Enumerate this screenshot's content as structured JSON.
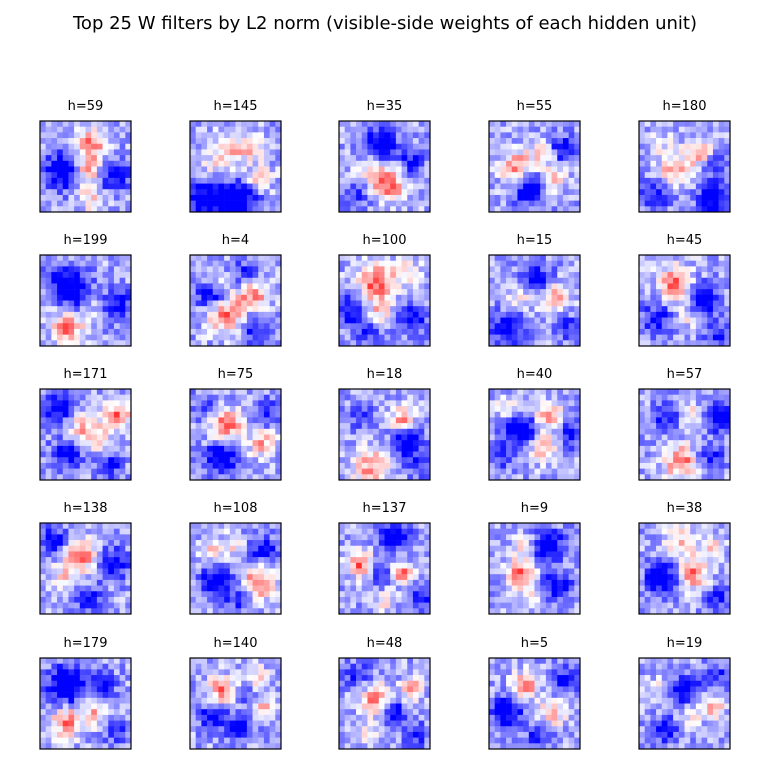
{
  "chart_data": {
    "type": "heatmap",
    "title": "Top 25 W filters by L2 norm (visible-side weights of each hidden unit)",
    "grid": "5x5 panels, each a 16x16 weight image",
    "colormap": "bwr",
    "colors": {
      "negative": "#0000ff",
      "zero": "#ffffff",
      "positive": "#ff0000",
      "frame": "#000000"
    },
    "panels": [
      {
        "label": "h=59",
        "blobs": [
          [
            0.55,
            0.25,
            0.12,
            0.9
          ],
          [
            0.52,
            0.55,
            0.12,
            0.8
          ],
          [
            0.55,
            0.85,
            0.1,
            0.5
          ],
          [
            0.25,
            0.55,
            0.15,
            -0.9
          ],
          [
            0.8,
            0.6,
            0.12,
            -0.8
          ]
        ]
      },
      {
        "label": "h=145",
        "blobs": [
          [
            0.45,
            0.3,
            0.12,
            0.6
          ],
          [
            0.7,
            0.3,
            0.1,
            0.5
          ],
          [
            0.75,
            0.65,
            0.1,
            0.7
          ],
          [
            0.3,
            0.5,
            0.12,
            0.4
          ],
          [
            0.2,
            0.85,
            0.15,
            -0.9
          ],
          [
            0.55,
            0.85,
            0.15,
            -0.9
          ]
        ]
      },
      {
        "label": "h=35",
        "blobs": [
          [
            0.55,
            0.7,
            0.12,
            1.0
          ],
          [
            0.35,
            0.55,
            0.1,
            0.6
          ],
          [
            0.45,
            0.25,
            0.12,
            -0.9
          ],
          [
            0.8,
            0.45,
            0.1,
            -0.6
          ],
          [
            0.2,
            0.8,
            0.1,
            -0.5
          ]
        ]
      },
      {
        "label": "h=55",
        "blobs": [
          [
            0.3,
            0.5,
            0.12,
            0.8
          ],
          [
            0.6,
            0.35,
            0.1,
            0.6
          ],
          [
            0.7,
            0.65,
            0.1,
            0.6
          ],
          [
            0.45,
            0.75,
            0.12,
            -0.9
          ],
          [
            0.8,
            0.3,
            0.1,
            -0.8
          ]
        ]
      },
      {
        "label": "h=180",
        "blobs": [
          [
            0.4,
            0.55,
            0.12,
            0.8
          ],
          [
            0.65,
            0.35,
            0.1,
            0.7
          ],
          [
            0.25,
            0.25,
            0.1,
            0.3
          ],
          [
            0.8,
            0.85,
            0.1,
            -1.0
          ],
          [
            0.2,
            0.8,
            0.12,
            -0.6
          ],
          [
            0.85,
            0.5,
            0.1,
            -0.5
          ]
        ]
      },
      {
        "label": "h=199",
        "blobs": [
          [
            0.3,
            0.8,
            0.12,
            0.9
          ],
          [
            0.55,
            0.5,
            0.12,
            0.4
          ],
          [
            0.4,
            0.4,
            0.14,
            -1.0
          ],
          [
            0.85,
            0.55,
            0.12,
            -0.7
          ],
          [
            0.2,
            0.25,
            0.12,
            -0.5
          ]
        ]
      },
      {
        "label": "h=4",
        "blobs": [
          [
            0.4,
            0.65,
            0.14,
            1.0
          ],
          [
            0.7,
            0.45,
            0.12,
            0.8
          ],
          [
            0.3,
            0.3,
            0.1,
            0.3
          ],
          [
            0.25,
            0.45,
            0.12,
            -0.8
          ],
          [
            0.7,
            0.8,
            0.12,
            -0.6
          ],
          [
            0.6,
            0.2,
            0.1,
            -0.5
          ]
        ]
      },
      {
        "label": "h=100",
        "blobs": [
          [
            0.4,
            0.3,
            0.14,
            1.0
          ],
          [
            0.45,
            0.6,
            0.1,
            0.6
          ],
          [
            0.75,
            0.2,
            0.1,
            0.5
          ],
          [
            0.15,
            0.6,
            0.12,
            -0.8
          ],
          [
            0.8,
            0.7,
            0.12,
            -0.7
          ],
          [
            0.3,
            0.85,
            0.1,
            -0.5
          ]
        ]
      },
      {
        "label": "h=15",
        "blobs": [
          [
            0.7,
            0.45,
            0.12,
            0.9
          ],
          [
            0.35,
            0.45,
            0.1,
            0.4
          ],
          [
            0.55,
            0.3,
            0.12,
            -0.9
          ],
          [
            0.2,
            0.8,
            0.12,
            -0.8
          ],
          [
            0.85,
            0.8,
            0.1,
            -0.5
          ]
        ]
      },
      {
        "label": "h=45",
        "blobs": [
          [
            0.4,
            0.3,
            0.12,
            1.0
          ],
          [
            0.55,
            0.65,
            0.1,
            0.5
          ],
          [
            0.7,
            0.5,
            0.12,
            -1.0
          ],
          [
            0.2,
            0.7,
            0.12,
            -0.6
          ],
          [
            0.85,
            0.85,
            0.1,
            -0.5
          ]
        ]
      },
      {
        "label": "h=171",
        "blobs": [
          [
            0.85,
            0.3,
            0.1,
            0.9
          ],
          [
            0.45,
            0.45,
            0.12,
            0.6
          ],
          [
            0.65,
            0.55,
            0.1,
            0.5
          ],
          [
            0.2,
            0.2,
            0.12,
            -0.8
          ],
          [
            0.3,
            0.7,
            0.12,
            -0.7
          ],
          [
            0.75,
            0.85,
            0.1,
            -0.6
          ]
        ]
      },
      {
        "label": "h=75",
        "blobs": [
          [
            0.4,
            0.4,
            0.12,
            1.0
          ],
          [
            0.8,
            0.6,
            0.1,
            0.7
          ],
          [
            0.35,
            0.75,
            0.12,
            -0.9
          ],
          [
            0.85,
            0.25,
            0.1,
            -0.6
          ],
          [
            0.15,
            0.2,
            0.1,
            -0.4
          ]
        ]
      },
      {
        "label": "h=18",
        "blobs": [
          [
            0.7,
            0.35,
            0.1,
            0.9
          ],
          [
            0.35,
            0.85,
            0.14,
            0.8
          ],
          [
            0.75,
            0.55,
            0.12,
            -0.9
          ],
          [
            0.25,
            0.3,
            0.1,
            -0.5
          ],
          [
            0.85,
            0.85,
            0.1,
            -0.4
          ]
        ]
      },
      {
        "label": "h=40",
        "blobs": [
          [
            0.65,
            0.3,
            0.1,
            0.8
          ],
          [
            0.6,
            0.65,
            0.12,
            0.6
          ],
          [
            0.2,
            0.2,
            0.08,
            0.5
          ],
          [
            0.35,
            0.45,
            0.12,
            -1.0
          ],
          [
            0.9,
            0.5,
            0.1,
            -0.7
          ],
          [
            0.15,
            0.75,
            0.1,
            -0.4
          ]
        ]
      },
      {
        "label": "h=57",
        "blobs": [
          [
            0.45,
            0.8,
            0.12,
            1.0
          ],
          [
            0.6,
            0.3,
            0.1,
            0.6
          ],
          [
            0.3,
            0.3,
            0.1,
            -0.6
          ],
          [
            0.85,
            0.3,
            0.12,
            -0.8
          ],
          [
            0.8,
            0.75,
            0.1,
            -0.6
          ]
        ]
      },
      {
        "label": "h=138",
        "blobs": [
          [
            0.45,
            0.35,
            0.12,
            1.0
          ],
          [
            0.25,
            0.6,
            0.1,
            0.5
          ],
          [
            0.15,
            0.2,
            0.1,
            -0.8
          ],
          [
            0.8,
            0.45,
            0.12,
            -0.8
          ],
          [
            0.55,
            0.85,
            0.1,
            -0.6
          ]
        ]
      },
      {
        "label": "h=108",
        "blobs": [
          [
            0.75,
            0.65,
            0.12,
            1.0
          ],
          [
            0.2,
            0.3,
            0.08,
            0.5
          ],
          [
            0.45,
            0.25,
            0.1,
            0.4
          ],
          [
            0.3,
            0.65,
            0.12,
            -0.9
          ],
          [
            0.8,
            0.3,
            0.12,
            -0.6
          ],
          [
            0.55,
            0.85,
            0.1,
            -0.5
          ]
        ]
      },
      {
        "label": "h=137",
        "blobs": [
          [
            0.25,
            0.45,
            0.1,
            1.0
          ],
          [
            0.7,
            0.55,
            0.08,
            0.9
          ],
          [
            0.5,
            0.85,
            0.08,
            0.5
          ],
          [
            0.6,
            0.15,
            0.12,
            -0.8
          ],
          [
            0.45,
            0.55,
            0.1,
            -0.6
          ],
          [
            0.9,
            0.8,
            0.1,
            -0.6
          ]
        ]
      },
      {
        "label": "h=9",
        "blobs": [
          [
            0.35,
            0.55,
            0.1,
            1.0
          ],
          [
            0.4,
            0.25,
            0.08,
            0.5
          ],
          [
            0.45,
            0.8,
            0.08,
            0.5
          ],
          [
            0.65,
            0.25,
            0.12,
            -0.9
          ],
          [
            0.75,
            0.7,
            0.12,
            -0.7
          ]
        ]
      },
      {
        "label": "h=38",
        "blobs": [
          [
            0.6,
            0.55,
            0.12,
            0.9
          ],
          [
            0.45,
            0.2,
            0.12,
            0.5
          ],
          [
            0.8,
            0.25,
            0.1,
            0.4
          ],
          [
            0.25,
            0.6,
            0.12,
            -1.0
          ],
          [
            0.85,
            0.8,
            0.1,
            -0.5
          ]
        ]
      },
      {
        "label": "h=179",
        "blobs": [
          [
            0.3,
            0.7,
            0.12,
            0.9
          ],
          [
            0.6,
            0.6,
            0.1,
            0.6
          ],
          [
            0.3,
            0.3,
            0.15,
            -1.0
          ],
          [
            0.7,
            0.3,
            0.1,
            -0.6
          ],
          [
            0.85,
            0.8,
            0.1,
            -0.5
          ]
        ]
      },
      {
        "label": "h=140",
        "blobs": [
          [
            0.35,
            0.35,
            0.1,
            1.0
          ],
          [
            0.8,
            0.55,
            0.08,
            0.7
          ],
          [
            0.75,
            0.2,
            0.08,
            0.5
          ],
          [
            0.25,
            0.65,
            0.1,
            -0.8
          ],
          [
            0.55,
            0.75,
            0.1,
            -0.7
          ],
          [
            0.6,
            0.4,
            0.08,
            -0.4
          ]
        ]
      },
      {
        "label": "h=48",
        "blobs": [
          [
            0.4,
            0.45,
            0.12,
            0.9
          ],
          [
            0.8,
            0.35,
            0.08,
            0.8
          ],
          [
            0.3,
            0.8,
            0.08,
            0.4
          ],
          [
            0.6,
            0.6,
            0.1,
            -0.8
          ],
          [
            0.2,
            0.2,
            0.1,
            -0.6
          ],
          [
            0.85,
            0.85,
            0.1,
            -0.5
          ]
        ]
      },
      {
        "label": "h=5",
        "blobs": [
          [
            0.4,
            0.3,
            0.1,
            0.9
          ],
          [
            0.7,
            0.6,
            0.1,
            0.7
          ],
          [
            0.2,
            0.6,
            0.12,
            -0.9
          ],
          [
            0.85,
            0.25,
            0.1,
            -0.6
          ],
          [
            0.55,
            0.85,
            0.1,
            -0.5
          ]
        ]
      },
      {
        "label": "h=19",
        "blobs": [
          [
            0.8,
            0.55,
            0.08,
            0.9
          ],
          [
            0.25,
            0.35,
            0.1,
            0.4
          ],
          [
            0.55,
            0.65,
            0.08,
            0.4
          ],
          [
            0.5,
            0.35,
            0.12,
            -0.8
          ],
          [
            0.3,
            0.8,
            0.1,
            -0.7
          ],
          [
            0.85,
            0.2,
            0.1,
            -0.5
          ]
        ]
      }
    ]
  }
}
